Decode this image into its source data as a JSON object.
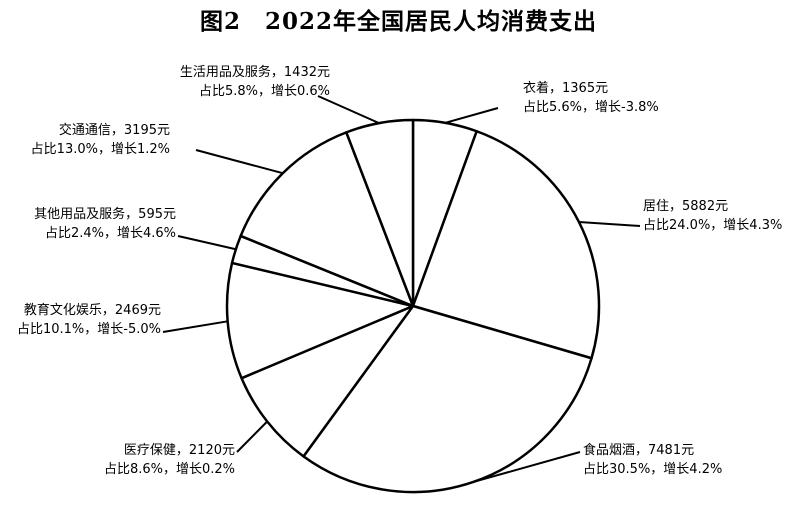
{
  "chart_data": {
    "type": "pie",
    "title": "图2　2022年全国居民人均消费支出",
    "slices": [
      {
        "name": "衣着",
        "value": 1365,
        "value_label": "1365元",
        "share_label": "占比5.6%，增长-3.8%"
      },
      {
        "name": "居住",
        "value": 5882,
        "value_label": "5882元",
        "share_label": "占比24.0%，增长4.3%"
      },
      {
        "name": "食品烟酒",
        "value": 7481,
        "value_label": "7481元",
        "share_label": "占比30.5%，增长4.2%"
      },
      {
        "name": "医疗保健",
        "value": 2120,
        "value_label": "2120元",
        "share_label": "占比8.6%，增长0.2%"
      },
      {
        "name": "教育文化娱乐",
        "value": 2469,
        "value_label": "2469元",
        "share_label": "占比10.1%，增长-5.0%"
      },
      {
        "name": "其他用品及服务",
        "value": 595,
        "value_label": "595元",
        "share_label": "占比2.4%，增长4.6%"
      },
      {
        "name": "交通通信",
        "value": 3195,
        "value_label": "3195元",
        "share_label": "占比13.0%，增长1.2%"
      },
      {
        "name": "生活用品及服务",
        "value": 1432,
        "value_label": "1432元",
        "share_label": "占比5.8%，增长0.6%"
      }
    ],
    "start": "top",
    "direction": "clockwise",
    "fill_color": "#ffffff",
    "line_color": "#000000"
  }
}
